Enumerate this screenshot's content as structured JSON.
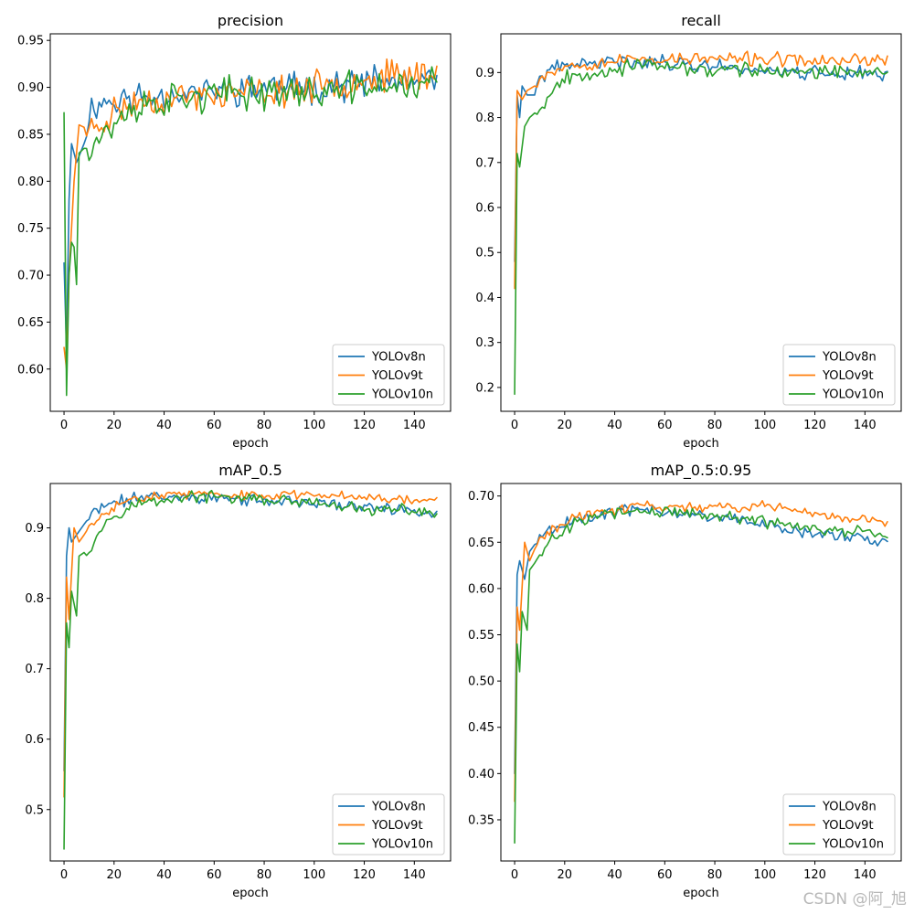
{
  "watermark": "CSDN @阿_旭",
  "legend": [
    "YOLOv8n",
    "YOLOv9t",
    "YOLOv10n"
  ],
  "colors": {
    "YOLOv8n": "#1f77b4",
    "YOLOv9t": "#ff7f0e",
    "YOLOv10n": "#2ca02c"
  },
  "chart_data": [
    {
      "type": "line",
      "title": "precision",
      "xlabel": "epoch",
      "ylabel": "",
      "xlim": [
        -5.5,
        154.5
      ],
      "ylim": [
        0.555,
        0.957
      ],
      "xticks": [
        0,
        20,
        40,
        60,
        80,
        100,
        120,
        140
      ],
      "yticks": [
        0.6,
        0.65,
        0.7,
        0.75,
        0.8,
        0.85,
        0.9,
        0.95
      ],
      "ytick_labels": [
        "0.60",
        "0.65",
        "0.70",
        "0.75",
        "0.80",
        "0.85",
        "0.90",
        "0.95"
      ],
      "legend_position": "lower-right",
      "epochs": 150,
      "series": [
        {
          "name": "YOLOv8n",
          "start": 0.713,
          "k": [
            [
              0,
              0.713
            ],
            [
              1,
              0.62
            ],
            [
              2,
              0.78
            ],
            [
              3,
              0.84
            ],
            [
              5,
              0.82
            ],
            [
              8,
              0.84
            ],
            [
              10,
              0.875
            ],
            [
              15,
              0.885
            ],
            [
              20,
              0.885
            ],
            [
              30,
              0.89
            ],
            [
              50,
              0.895
            ],
            [
              80,
              0.9
            ],
            [
              100,
              0.9
            ],
            [
              120,
              0.905
            ],
            [
              149,
              0.905
            ]
          ],
          "noise": 0.012,
          "seed": 11
        },
        {
          "name": "YOLOv9t",
          "start": 0.623,
          "k": [
            [
              0,
              0.623
            ],
            [
              1,
              0.6
            ],
            [
              2,
              0.7
            ],
            [
              4,
              0.8
            ],
            [
              6,
              0.86
            ],
            [
              10,
              0.855
            ],
            [
              15,
              0.86
            ],
            [
              20,
              0.875
            ],
            [
              30,
              0.885
            ],
            [
              50,
              0.89
            ],
            [
              80,
              0.895
            ],
            [
              100,
              0.9
            ],
            [
              120,
              0.91
            ],
            [
              149,
              0.915
            ]
          ],
          "noise": 0.012,
          "seed": 23
        },
        {
          "name": "YOLOv10n",
          "start": 0.873,
          "k": [
            [
              0,
              0.873
            ],
            [
              1,
              0.572
            ],
            [
              2,
              0.7
            ],
            [
              3,
              0.735
            ],
            [
              4,
              0.73
            ],
            [
              5,
              0.69
            ],
            [
              6,
              0.83
            ],
            [
              10,
              0.84
            ],
            [
              15,
              0.85
            ],
            [
              20,
              0.86
            ],
            [
              30,
              0.88
            ],
            [
              50,
              0.89
            ],
            [
              80,
              0.895
            ],
            [
              100,
              0.895
            ],
            [
              120,
              0.9
            ],
            [
              149,
              0.905
            ]
          ],
          "noise": 0.013,
          "seed": 37
        }
      ]
    },
    {
      "type": "line",
      "title": "recall",
      "xlabel": "epoch",
      "ylabel": "",
      "xlim": [
        -5.5,
        154.5
      ],
      "ylim": [
        0.147,
        0.986
      ],
      "xticks": [
        0,
        20,
        40,
        60,
        80,
        100,
        120,
        140
      ],
      "yticks": [
        0.2,
        0.3,
        0.4,
        0.5,
        0.6,
        0.7,
        0.8,
        0.9
      ],
      "ytick_labels": [
        "0.2",
        "0.3",
        "0.4",
        "0.5",
        "0.6",
        "0.7",
        "0.8",
        "0.9"
      ],
      "legend_position": "lower-right",
      "epochs": 150,
      "series": [
        {
          "name": "YOLOv8n",
          "start": 0.48,
          "k": [
            [
              0,
              0.48
            ],
            [
              1,
              0.85
            ],
            [
              2,
              0.8
            ],
            [
              3,
              0.87
            ],
            [
              5,
              0.85
            ],
            [
              8,
              0.85
            ],
            [
              10,
              0.89
            ],
            [
              15,
              0.905
            ],
            [
              20,
              0.915
            ],
            [
              30,
              0.92
            ],
            [
              50,
              0.925
            ],
            [
              80,
              0.915
            ],
            [
              100,
              0.905
            ],
            [
              120,
              0.9
            ],
            [
              149,
              0.895
            ]
          ],
          "noise": 0.012,
          "seed": 41
        },
        {
          "name": "YOLOv9t",
          "start": 0.42,
          "k": [
            [
              0,
              0.42
            ],
            [
              1,
              0.86
            ],
            [
              3,
              0.84
            ],
            [
              5,
              0.86
            ],
            [
              8,
              0.87
            ],
            [
              10,
              0.89
            ],
            [
              15,
              0.905
            ],
            [
              20,
              0.915
            ],
            [
              30,
              0.92
            ],
            [
              50,
              0.93
            ],
            [
              80,
              0.93
            ],
            [
              100,
              0.93
            ],
            [
              120,
              0.925
            ],
            [
              149,
              0.93
            ]
          ],
          "noise": 0.011,
          "seed": 53
        },
        {
          "name": "YOLOv10n",
          "start": 0.185,
          "k": [
            [
              0,
              0.185
            ],
            [
              1,
              0.72
            ],
            [
              2,
              0.69
            ],
            [
              4,
              0.78
            ],
            [
              6,
              0.8
            ],
            [
              10,
              0.82
            ],
            [
              15,
              0.86
            ],
            [
              20,
              0.89
            ],
            [
              30,
              0.9
            ],
            [
              50,
              0.915
            ],
            [
              80,
              0.905
            ],
            [
              100,
              0.905
            ],
            [
              120,
              0.9
            ],
            [
              149,
              0.9
            ]
          ],
          "noise": 0.012,
          "seed": 67
        }
      ]
    },
    {
      "type": "line",
      "title": "mAP_0.5",
      "xlabel": "epoch",
      "ylabel": "",
      "xlim": [
        -5.5,
        154.5
      ],
      "ylim": [
        0.427,
        0.963
      ],
      "xticks": [
        0,
        20,
        40,
        60,
        80,
        100,
        120,
        140
      ],
      "yticks": [
        0.5,
        0.6,
        0.7,
        0.8,
        0.9
      ],
      "ytick_labels": [
        "0.5",
        "0.6",
        "0.7",
        "0.8",
        "0.9"
      ],
      "legend_position": "lower-right",
      "epochs": 150,
      "series": [
        {
          "name": "YOLOv8n",
          "start": 0.555,
          "k": [
            [
              0,
              0.555
            ],
            [
              1,
              0.86
            ],
            [
              2,
              0.9
            ],
            [
              3,
              0.88
            ],
            [
              5,
              0.89
            ],
            [
              8,
              0.905
            ],
            [
              10,
              0.915
            ],
            [
              15,
              0.93
            ],
            [
              20,
              0.935
            ],
            [
              30,
              0.945
            ],
            [
              50,
              0.945
            ],
            [
              70,
              0.94
            ],
            [
              100,
              0.935
            ],
            [
              120,
              0.93
            ],
            [
              140,
              0.925
            ],
            [
              149,
              0.92
            ]
          ],
          "noise": 0.006,
          "seed": 71
        },
        {
          "name": "YOLOv9t",
          "start": 0.518,
          "k": [
            [
              0,
              0.518
            ],
            [
              1,
              0.83
            ],
            [
              2,
              0.77
            ],
            [
              4,
              0.9
            ],
            [
              6,
              0.88
            ],
            [
              10,
              0.9
            ],
            [
              15,
              0.915
            ],
            [
              20,
              0.93
            ],
            [
              30,
              0.945
            ],
            [
              50,
              0.948
            ],
            [
              80,
              0.945
            ],
            [
              100,
              0.948
            ],
            [
              120,
              0.945
            ],
            [
              140,
              0.94
            ],
            [
              149,
              0.94
            ]
          ],
          "noise": 0.005,
          "seed": 83
        },
        {
          "name": "YOLOv10n",
          "start": 0.444,
          "k": [
            [
              0,
              0.444
            ],
            [
              1,
              0.765
            ],
            [
              2,
              0.73
            ],
            [
              3,
              0.81
            ],
            [
              5,
              0.775
            ],
            [
              6,
              0.86
            ],
            [
              10,
              0.87
            ],
            [
              15,
              0.9
            ],
            [
              20,
              0.92
            ],
            [
              30,
              0.935
            ],
            [
              50,
              0.945
            ],
            [
              80,
              0.94
            ],
            [
              100,
              0.935
            ],
            [
              120,
              0.925
            ],
            [
              140,
              0.925
            ],
            [
              149,
              0.92
            ]
          ],
          "noise": 0.006,
          "seed": 97
        }
      ]
    },
    {
      "type": "line",
      "title": "mAP_0.5:0.95",
      "xlabel": "epoch",
      "ylabel": "",
      "xlim": [
        -5.5,
        154.5
      ],
      "ylim": [
        0.3055,
        0.7135
      ],
      "xticks": [
        0,
        20,
        40,
        60,
        80,
        100,
        120,
        140
      ],
      "yticks": [
        0.35,
        0.4,
        0.45,
        0.5,
        0.55,
        0.6,
        0.65,
        0.7
      ],
      "ytick_labels": [
        "0.35",
        "0.40",
        "0.45",
        "0.50",
        "0.55",
        "0.60",
        "0.65",
        "0.70"
      ],
      "legend_position": "lower-right",
      "epochs": 150,
      "series": [
        {
          "name": "YOLOv8n",
          "start": 0.4,
          "k": [
            [
              0,
              0.4
            ],
            [
              1,
              0.615
            ],
            [
              2,
              0.63
            ],
            [
              4,
              0.61
            ],
            [
              6,
              0.64
            ],
            [
              10,
              0.655
            ],
            [
              15,
              0.665
            ],
            [
              20,
              0.67
            ],
            [
              30,
              0.68
            ],
            [
              50,
              0.685
            ],
            [
              70,
              0.68
            ],
            [
              90,
              0.675
            ],
            [
              100,
              0.668
            ],
            [
              120,
              0.66
            ],
            [
              140,
              0.655
            ],
            [
              149,
              0.648
            ]
          ],
          "noise": 0.005,
          "seed": 101
        },
        {
          "name": "YOLOv9t",
          "start": 0.37,
          "k": [
            [
              0,
              0.37
            ],
            [
              1,
              0.58
            ],
            [
              2,
              0.555
            ],
            [
              4,
              0.65
            ],
            [
              6,
              0.63
            ],
            [
              10,
              0.655
            ],
            [
              15,
              0.665
            ],
            [
              20,
              0.672
            ],
            [
              30,
              0.68
            ],
            [
              50,
              0.69
            ],
            [
              70,
              0.688
            ],
            [
              90,
              0.688
            ],
            [
              100,
              0.69
            ],
            [
              120,
              0.68
            ],
            [
              140,
              0.675
            ],
            [
              149,
              0.67
            ]
          ],
          "noise": 0.004,
          "seed": 113
        },
        {
          "name": "YOLOv10n",
          "start": 0.325,
          "k": [
            [
              0,
              0.325
            ],
            [
              1,
              0.54
            ],
            [
              2,
              0.51
            ],
            [
              3,
              0.575
            ],
            [
              5,
              0.555
            ],
            [
              6,
              0.62
            ],
            [
              10,
              0.635
            ],
            [
              15,
              0.655
            ],
            [
              20,
              0.665
            ],
            [
              30,
              0.678
            ],
            [
              50,
              0.685
            ],
            [
              70,
              0.682
            ],
            [
              90,
              0.675
            ],
            [
              100,
              0.672
            ],
            [
              120,
              0.665
            ],
            [
              140,
              0.66
            ],
            [
              149,
              0.655
            ]
          ],
          "noise": 0.005,
          "seed": 127
        }
      ]
    }
  ]
}
